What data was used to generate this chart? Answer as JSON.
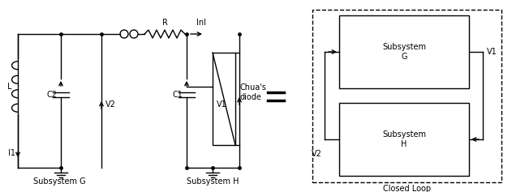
{
  "bg_color": "#ffffff",
  "line_color": "#000000",
  "subsystem_g_label": "Subsystem G",
  "subsystem_h_label": "Subsystem H",
  "closed_loop_label": "Closed Loop",
  "L_label": "L",
  "C2_label": "C2",
  "V2_label": "V2",
  "V2_label2": "V2",
  "C1_label": "C1",
  "V1_label": "V1",
  "R_label": "R",
  "InI_label": "InI",
  "I1_label": "I1",
  "chua_label": "Chua's\ndiode",
  "V1_block_label": "V1"
}
